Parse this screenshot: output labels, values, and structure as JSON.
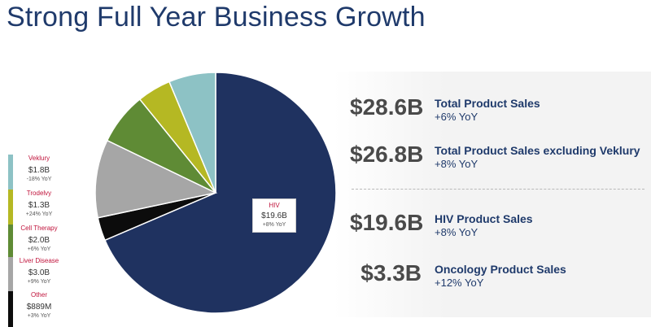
{
  "title": "Strong Full Year Business Growth",
  "metrics": [
    {
      "value": "$28.6B",
      "label": "Total Product Sales",
      "yoy": "+6% YoY"
    },
    {
      "value": "$26.8B",
      "label": "Total Product Sales excluding Veklury",
      "yoy": "+8% YoY"
    },
    {
      "value": "$19.6B",
      "label": "HIV Product Sales",
      "yoy": "+8% YoY"
    },
    {
      "value": "$3.3B",
      "label": "Oncology Product Sales",
      "yoy": "+12% YoY"
    }
  ],
  "legend": [
    {
      "name": "Veklury",
      "value": "$1.8B",
      "yoy": "-18% YoY",
      "color": "#8dc2c5"
    },
    {
      "name": "Trodelvy",
      "value": "$1.3B",
      "yoy": "+24% YoY",
      "color": "#b5b823"
    },
    {
      "name": "Cell Therapy",
      "value": "$2.0B",
      "yoy": "+6% YoY",
      "color": "#5f8b35"
    },
    {
      "name": "Liver Disease",
      "value": "$3.0B",
      "yoy": "+9% YoY",
      "color": "#a6a6a6"
    },
    {
      "name": "Other",
      "value": "$889M",
      "yoy": "+3% YoY",
      "color": "#0c0c0c"
    }
  ],
  "hiv_label": {
    "name": "HIV",
    "value": "$19.6B",
    "yoy": "+8% YoY",
    "color": "#1f3260"
  },
  "chart_data": {
    "type": "pie",
    "categories": [
      "HIV",
      "Other",
      "Liver Disease",
      "Cell Therapy",
      "Trodelvy",
      "Veklury"
    ],
    "values": [
      19.6,
      0.889,
      3.0,
      2.0,
      1.3,
      1.8
    ],
    "colors": [
      "#1f3260",
      "#0c0c0c",
      "#a6a6a6",
      "#5f8b35",
      "#b5b823",
      "#8dc2c5"
    ],
    "unit": "$B",
    "start": "12 o'clock",
    "direction": "clockwise"
  }
}
